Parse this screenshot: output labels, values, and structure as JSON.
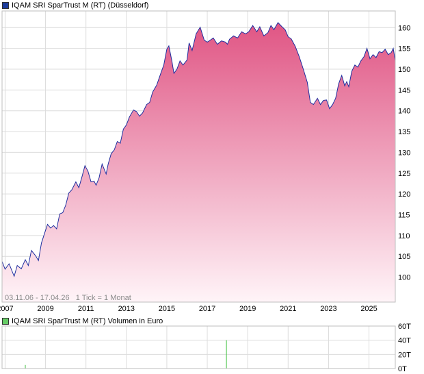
{
  "colors": {
    "price_line": "#1f2fa0",
    "area_top": "#e05584",
    "area_bottom": "#fff4f8",
    "volume_bar": "#40c040",
    "grid": "#dcdcdc",
    "legend_price_swatch": "#1c3c9c",
    "legend_volume_swatch": "#66cc66"
  },
  "chart_data": [
    {
      "type": "area",
      "title": "IQAM SRI SparTrust M (RT) (Düsseldorf)",
      "ylim": [
        94,
        164
      ],
      "yticks": [
        100,
        105,
        110,
        115,
        120,
        125,
        130,
        135,
        140,
        145,
        150,
        155,
        160
      ],
      "xlim": [
        2006.85,
        2026.3
      ],
      "xticks": [
        "2007",
        "2009",
        "2011",
        "2013",
        "2015",
        "2017",
        "2019",
        "2021",
        "2023",
        "2025"
      ],
      "grid": true,
      "footnote": "03.11.06 - 17.04.26   1 Tick = 1 Monat",
      "series": [
        {
          "name": "IQAM SRI SparTrust M (RT)",
          "x": [
            2006.85,
            2007.0,
            2007.2,
            2007.45,
            2007.6,
            2007.8,
            2008.0,
            2008.15,
            2008.3,
            2008.5,
            2008.65,
            2008.8,
            2008.95,
            2009.1,
            2009.25,
            2009.4,
            2009.55,
            2009.7,
            2009.85,
            2010.0,
            2010.15,
            2010.3,
            2010.5,
            2010.65,
            2010.8,
            2010.95,
            2011.1,
            2011.25,
            2011.4,
            2011.5,
            2011.65,
            2011.8,
            2012.0,
            2012.1,
            2012.25,
            2012.4,
            2012.55,
            2012.7,
            2012.85,
            2013.0,
            2013.15,
            2013.35,
            2013.5,
            2013.65,
            2013.8,
            2014.0,
            2014.15,
            2014.3,
            2014.5,
            2014.7,
            2014.85,
            2015.0,
            2015.1,
            2015.25,
            2015.35,
            2015.5,
            2015.65,
            2015.8,
            2016.0,
            2016.1,
            2016.25,
            2016.45,
            2016.65,
            2016.85,
            2017.0,
            2017.15,
            2017.3,
            2017.5,
            2017.7,
            2017.9,
            2018.0,
            2018.1,
            2018.3,
            2018.5,
            2018.7,
            2018.9,
            2019.05,
            2019.25,
            2019.45,
            2019.6,
            2019.8,
            2020.0,
            2020.15,
            2020.3,
            2020.5,
            2020.7,
            2020.85,
            2021.0,
            2021.15,
            2021.35,
            2021.55,
            2021.75,
            2021.95,
            2022.1,
            2022.25,
            2022.45,
            2022.6,
            2022.75,
            2022.9,
            2023.05,
            2023.2,
            2023.35,
            2023.5,
            2023.65,
            2023.8,
            2023.9,
            2024.0,
            2024.15,
            2024.3,
            2024.45,
            2024.6,
            2024.75,
            2024.9,
            2025.05,
            2025.2,
            2025.35,
            2025.5,
            2025.65,
            2025.8,
            2025.95,
            2026.1,
            2026.2,
            2026.3
          ],
          "y": [
            103.8,
            101.9,
            103.2,
            100.2,
            102.8,
            102.0,
            104.2,
            102.8,
            106.4,
            105.2,
            104.0,
            108.2,
            110.5,
            112.7,
            111.8,
            112.4,
            111.6,
            115.2,
            115.5,
            117.3,
            120.2,
            121.0,
            122.9,
            121.5,
            124.1,
            126.8,
            125.5,
            122.9,
            123.1,
            122.1,
            123.9,
            127.2,
            124.8,
            127.2,
            129.7,
            130.6,
            132.6,
            132.2,
            135.6,
            136.6,
            138.5,
            140.2,
            139.8,
            138.7,
            139.5,
            141.5,
            142.0,
            144.5,
            146.2,
            149.0,
            151.0,
            154.8,
            155.6,
            152.0,
            149.0,
            150.0,
            152.0,
            151.0,
            152.2,
            156.3,
            154.5,
            158.5,
            160.1,
            157.0,
            156.5,
            157.0,
            157.5,
            156.0,
            156.8,
            156.5,
            156.0,
            157.2,
            158.0,
            157.5,
            159.0,
            158.5,
            159.0,
            160.5,
            159.0,
            160.2,
            158.0,
            158.8,
            160.5,
            159.5,
            161.2,
            160.2,
            159.5,
            157.8,
            157.3,
            155.5,
            153.0,
            150.0,
            146.8,
            142.0,
            141.5,
            143.0,
            141.5,
            142.5,
            142.6,
            140.5,
            141.5,
            143.0,
            146.5,
            148.5,
            146.0,
            147.0,
            145.8,
            149.5,
            151.0,
            150.5,
            152.0,
            153.0,
            155.0,
            152.5,
            153.5,
            152.8,
            154.2,
            154.0,
            154.8,
            153.5,
            154.0,
            155.0,
            152.0
          ]
        }
      ]
    },
    {
      "type": "bar",
      "title": "IQAM SRI SparTrust M (RT) Volumen in Euro",
      "ylim": [
        0,
        60
      ],
      "yticks": [
        "0T",
        "20T",
        "40T",
        "60T"
      ],
      "yticks_values": [
        0,
        20,
        40,
        60
      ],
      "series": [
        {
          "name": "Volumen in Euro",
          "x": [
            2008.0,
            2017.95
          ],
          "values": [
            5,
            40
          ]
        }
      ]
    }
  ]
}
